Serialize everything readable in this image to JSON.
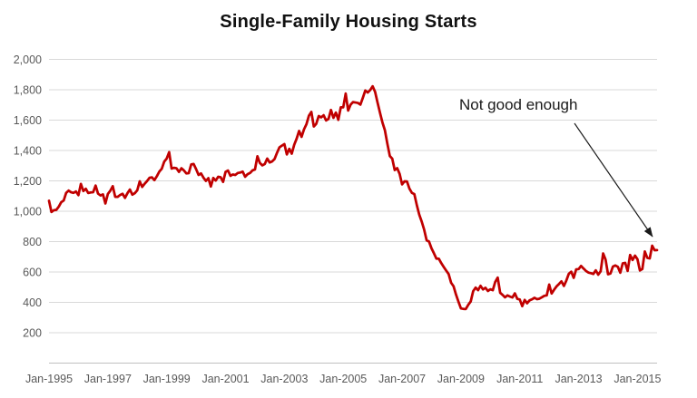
{
  "page": {
    "background": "#ffffff"
  },
  "chart_data": {
    "type": "line",
    "title": "Single-Family Housing Starts",
    "xlabel": "",
    "ylabel": "",
    "x_start": "Jan-1995",
    "x_end": "Sep-2015",
    "frequency": "monthly",
    "x_tick_labels": [
      "Jan-1995",
      "Jan-1997",
      "Jan-1999",
      "Jan-2001",
      "Jan-2003",
      "Jan-2005",
      "Jan-2007",
      "Jan-2009",
      "Jan-2011",
      "Jan-2013",
      "Jan-2015"
    ],
    "x_tick_interval_months": 24,
    "y_tick_values": [
      200,
      400,
      600,
      800,
      1000,
      1200,
      1400,
      1600,
      1800,
      2000
    ],
    "y_tick_labels": [
      "200",
      "400",
      "600",
      "800",
      "1,000",
      "1,200",
      "1,400",
      "1,600",
      "1,800",
      "2,000"
    ],
    "ylim": [
      0,
      2000
    ],
    "grid": "horizontal",
    "legend": "none",
    "line_color": "#C00000",
    "gridline_color": "#D9D9D9",
    "axis_line_color": "#BFBFBF",
    "tick_label_color": "#595959",
    "values": [
      1069,
      995,
      1007,
      1009,
      1031,
      1060,
      1071,
      1121,
      1136,
      1125,
      1121,
      1130,
      1106,
      1180,
      1133,
      1148,
      1120,
      1124,
      1125,
      1169,
      1116,
      1104,
      1111,
      1051,
      1114,
      1135,
      1165,
      1095,
      1095,
      1107,
      1115,
      1088,
      1119,
      1143,
      1109,
      1119,
      1138,
      1197,
      1160,
      1181,
      1199,
      1220,
      1223,
      1205,
      1231,
      1261,
      1280,
      1327,
      1347,
      1389,
      1281,
      1286,
      1283,
      1259,
      1283,
      1269,
      1249,
      1251,
      1308,
      1311,
      1277,
      1239,
      1249,
      1221,
      1200,
      1218,
      1163,
      1219,
      1202,
      1227,
      1224,
      1193,
      1259,
      1268,
      1233,
      1242,
      1239,
      1252,
      1255,
      1261,
      1227,
      1244,
      1252,
      1269,
      1275,
      1362,
      1318,
      1302,
      1311,
      1347,
      1321,
      1328,
      1344,
      1385,
      1421,
      1432,
      1442,
      1374,
      1411,
      1379,
      1437,
      1478,
      1529,
      1490,
      1539,
      1573,
      1629,
      1654,
      1558,
      1576,
      1627,
      1618,
      1632,
      1598,
      1608,
      1667,
      1615,
      1650,
      1602,
      1684,
      1684,
      1775,
      1663,
      1702,
      1719,
      1716,
      1713,
      1702,
      1747,
      1795,
      1782,
      1798,
      1823,
      1786,
      1715,
      1648,
      1584,
      1533,
      1445,
      1364,
      1346,
      1271,
      1284,
      1246,
      1177,
      1197,
      1196,
      1149,
      1121,
      1113,
      1041,
      978,
      932,
      879,
      809,
      800,
      756,
      723,
      688,
      687,
      658,
      633,
      609,
      586,
      529,
      506,
      451,
      404,
      360,
      357,
      356,
      384,
      406,
      474,
      497,
      480,
      509,
      485,
      496,
      475,
      486,
      480,
      535,
      563,
      463,
      449,
      433,
      446,
      438,
      432,
      459,
      423,
      419,
      375,
      416,
      394,
      413,
      420,
      430,
      421,
      424,
      433,
      443,
      446,
      517,
      458,
      483,
      505,
      521,
      538,
      508,
      544,
      588,
      602,
      561,
      617,
      619,
      640,
      623,
      607,
      596,
      592,
      587,
      611,
      582,
      605,
      722,
      681,
      585,
      590,
      636,
      643,
      634,
      595,
      657,
      660,
      607,
      712,
      679,
      708,
      684,
      610,
      620,
      735,
      693,
      689,
      773,
      743,
      744
    ],
    "annotation": {
      "text": "Not good enough",
      "points_to": "last data point"
    }
  }
}
